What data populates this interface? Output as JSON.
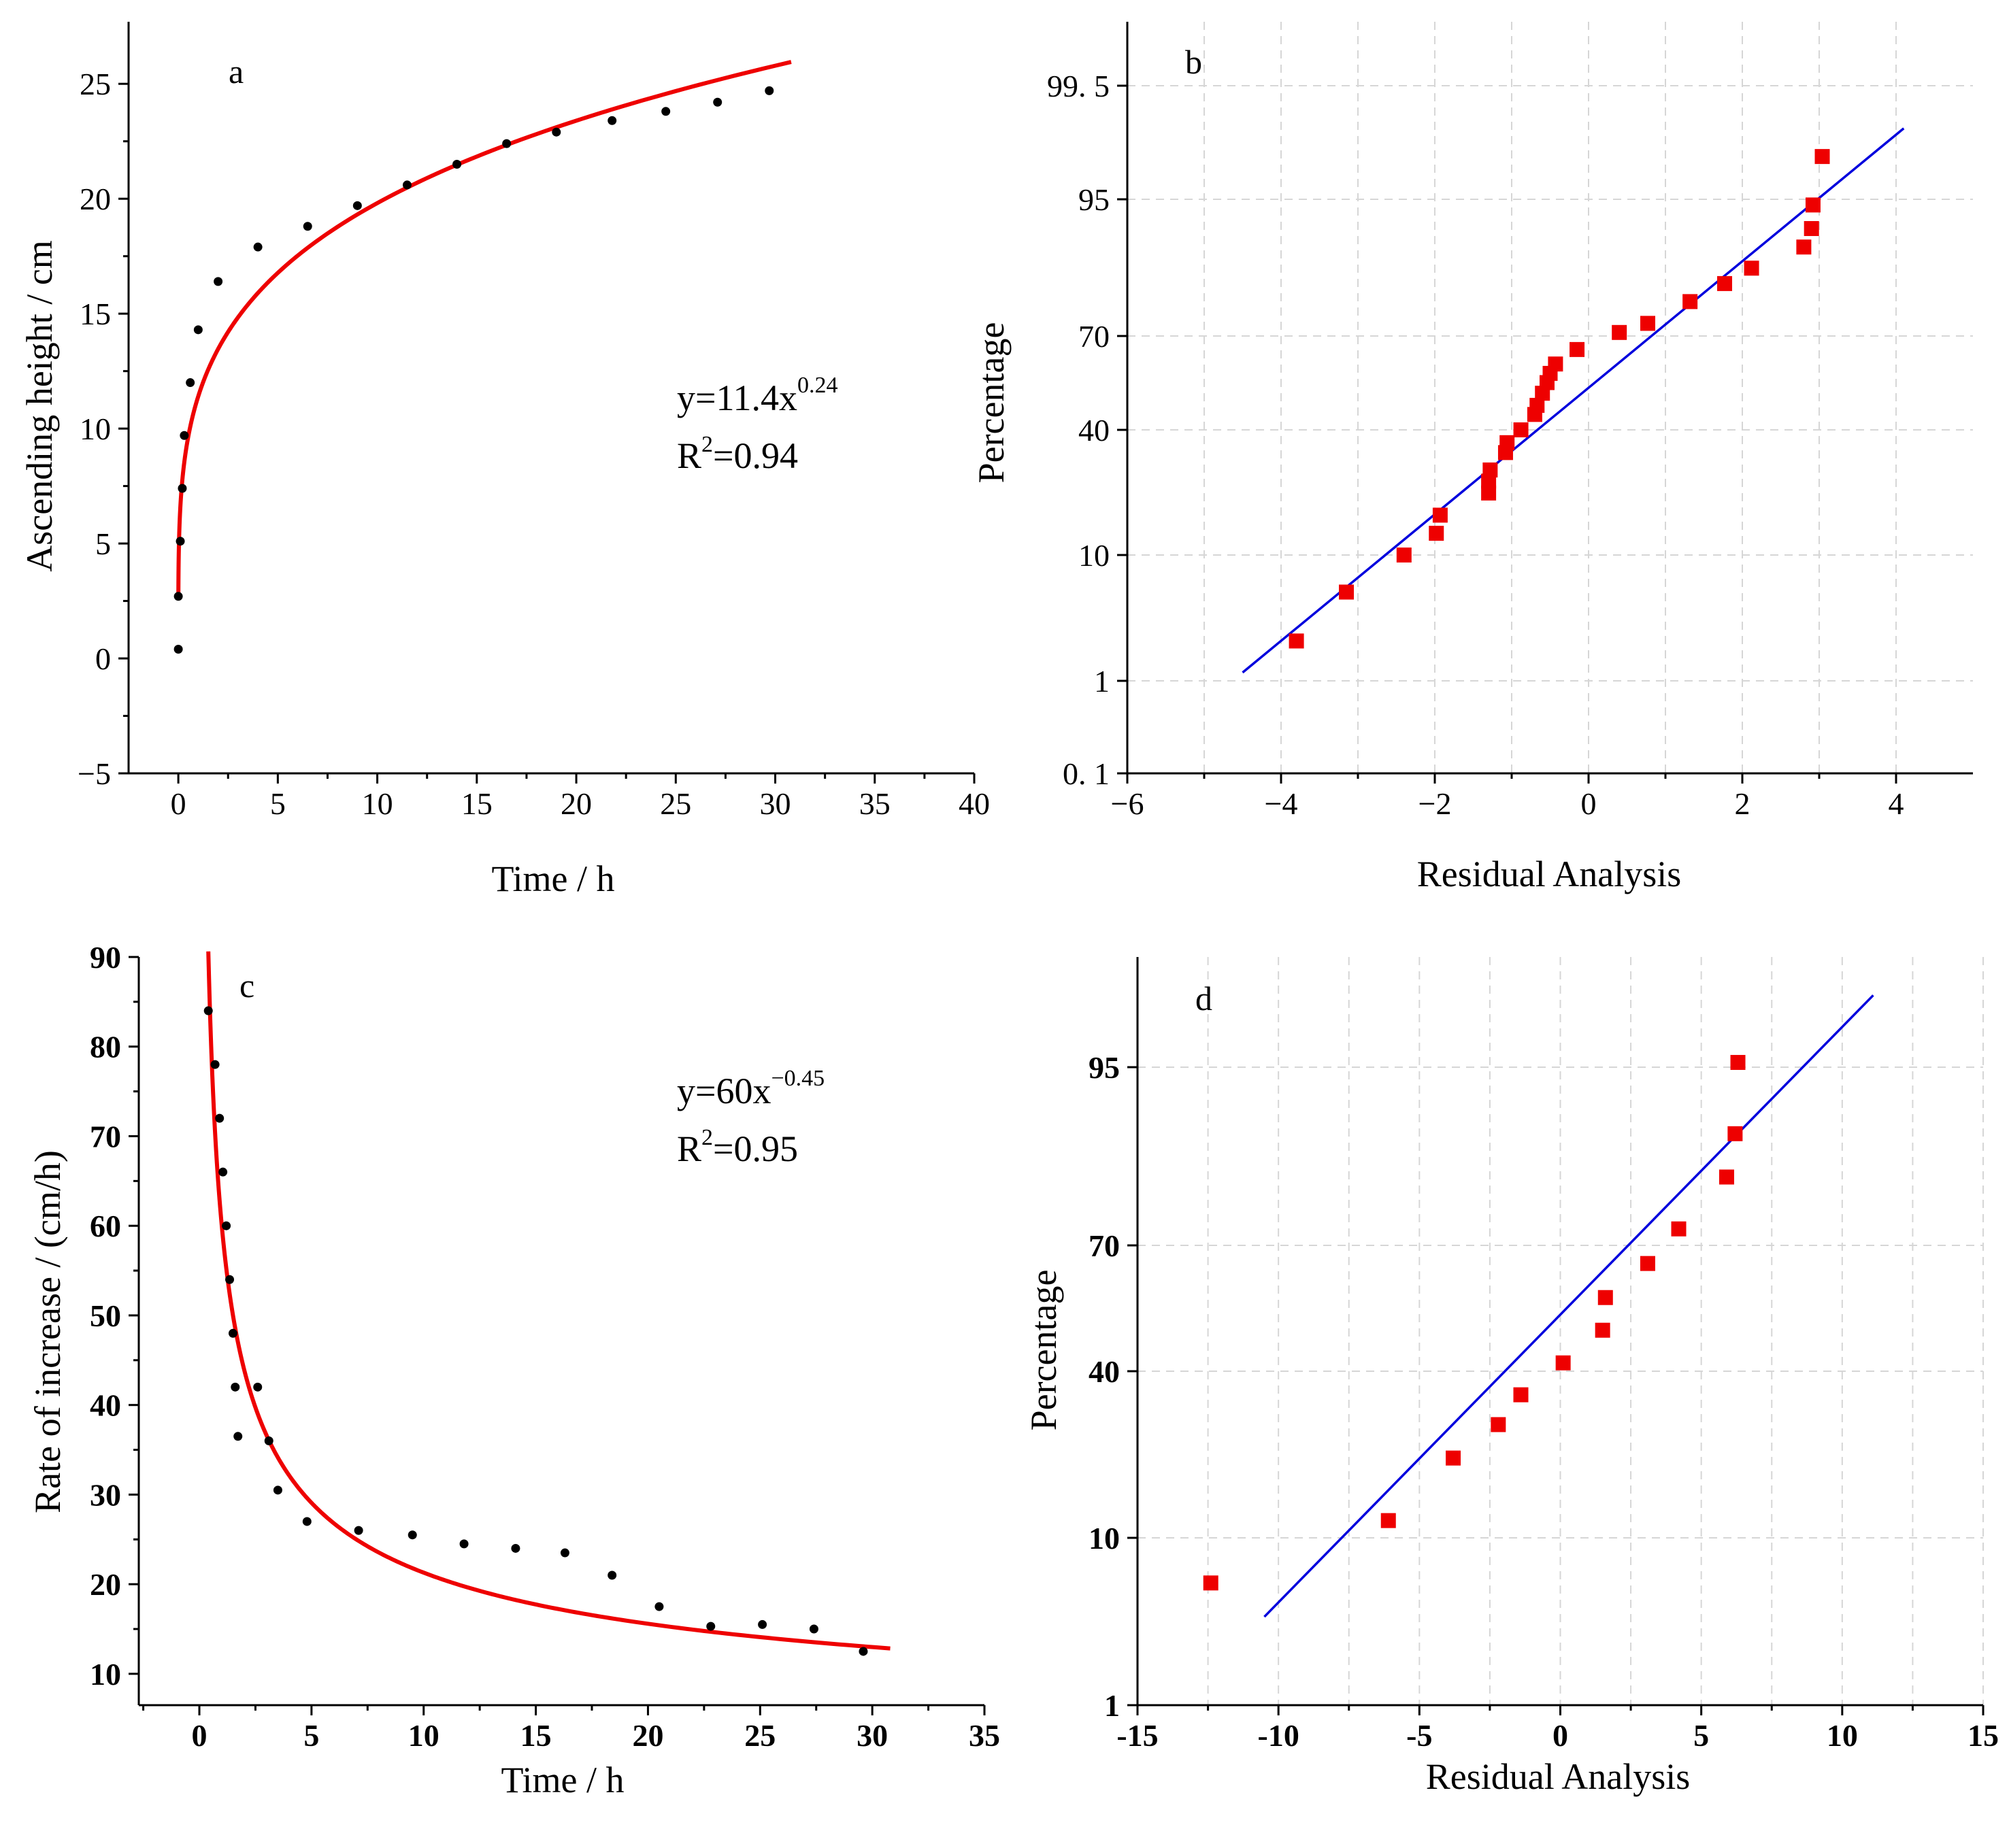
{
  "chart_data": [
    {
      "id": "a",
      "type": "scatter",
      "panel_label": "a",
      "xlabel": "Time / h",
      "ylabel": "Ascending height / cm",
      "xlim": [
        -2.5,
        40
      ],
      "ylim": [
        -5,
        27.7
      ],
      "xticks": [
        0,
        5,
        10,
        15,
        20,
        25,
        30,
        35,
        40
      ],
      "xtick_labels": [
        "0",
        "5",
        "10",
        "15",
        "20",
        "25",
        "30",
        "35",
        "40"
      ],
      "yticks": [
        -5,
        0,
        5,
        10,
        15,
        20,
        25
      ],
      "ytick_labels": [
        "−5",
        "0",
        "5",
        "10",
        "15",
        "20",
        "25"
      ],
      "grid": false,
      "series": [
        {
          "kind": "points",
          "color": "#000000",
          "x": [
            0.0,
            0.0,
            0.1,
            0.2,
            0.3,
            0.6,
            1.0,
            2.0,
            4.0,
            6.5,
            9.0,
            11.5,
            14.0,
            16.5,
            19.0,
            21.8,
            24.5,
            27.1,
            29.7
          ],
          "y": [
            0.4,
            2.7,
            5.1,
            7.4,
            9.7,
            12.0,
            14.3,
            16.4,
            17.9,
            18.8,
            19.7,
            20.6,
            21.5,
            22.4,
            22.9,
            23.4,
            23.8,
            24.2,
            24.7
          ]
        },
        {
          "kind": "fit",
          "color": "#ee0000",
          "equation": {
            "coef": 11.4,
            "exp": 0.24
          },
          "x_range": [
            0.0028,
            30.8
          ]
        }
      ],
      "annotations": {
        "equation_base": "y=11.4x",
        "equation_exp": "0.24",
        "r2_base": "R",
        "r2_sup": "2",
        "r2_value": "=0.94"
      }
    },
    {
      "id": "b",
      "type": "scatter",
      "panel_label": "b",
      "xlabel": "Residual Analysis",
      "ylabel": "Percentage",
      "y_scale": "normal-probability",
      "xlim": [
        -6,
        5
      ],
      "xticks": [
        -6,
        -4,
        -2,
        0,
        2,
        4
      ],
      "xtick_labels": [
        "−6",
        "−4",
        "−2",
        "0",
        "2",
        "4"
      ],
      "yticks": [
        0.1,
        1,
        10,
        40,
        70,
        95,
        99.5
      ],
      "ytick_labels": [
        "0. 1",
        "1",
        "10",
        "40",
        "70",
        "95",
        "99. 5"
      ],
      "grid": true,
      "series": [
        {
          "kind": "points",
          "color": "#ee0000",
          "x": [
            -3.8,
            -3.15,
            -2.4,
            -1.98,
            -1.93,
            -1.3,
            -1.3,
            -1.28,
            -1.08,
            -1.06,
            -0.88,
            -0.7,
            -0.67,
            -0.6,
            -0.54,
            -0.5,
            -0.43,
            -0.15,
            0.4,
            0.77,
            1.32,
            1.77,
            2.12,
            2.8,
            2.9,
            2.92,
            3.04
          ],
          "y": [
            2.3,
            5.6,
            10.0,
            13.5,
            17.0,
            22.0,
            25.0,
            28.0,
            33.0,
            36.0,
            40.0,
            45.0,
            48.0,
            52.0,
            55.5,
            58.5,
            61.5,
            66.0,
            71.0,
            73.5,
            79.0,
            83.0,
            86.0,
            89.5,
            92.0,
            94.5,
            97.7
          ]
        },
        {
          "kind": "fit",
          "color": "#0000dd",
          "x": [
            -4.5,
            4.1
          ],
          "y": [
            1.2,
            98.7
          ]
        }
      ]
    },
    {
      "id": "c",
      "type": "scatter",
      "panel_label": "c",
      "xlabel": "Time / h",
      "ylabel": "Rate of increase / (cm/h)",
      "xlim": [
        -2.7,
        35
      ],
      "ylim": [
        6.5,
        90
      ],
      "xticks": [
        0,
        5,
        10,
        15,
        20,
        25,
        30,
        35
      ],
      "xtick_labels": [
        "0",
        "5",
        "10",
        "15",
        "20",
        "25",
        "30",
        "35"
      ],
      "yticks": [
        10,
        20,
        30,
        40,
        50,
        60,
        70,
        80,
        90
      ],
      "ytick_labels": [
        "10",
        "20",
        "30",
        "40",
        "50",
        "60",
        "70",
        "80",
        "90"
      ],
      "ytick_bold": true,
      "grid": false,
      "series": [
        {
          "kind": "points",
          "color": "#000000",
          "x": [
            0.4,
            0.7,
            0.9,
            1.05,
            1.2,
            1.35,
            1.5,
            1.6,
            1.72,
            2.6,
            3.1,
            3.5,
            4.8,
            7.1,
            9.5,
            11.8,
            14.1,
            16.3,
            18.4,
            20.5,
            22.8,
            25.1,
            27.4,
            29.6
          ],
          "y": [
            84.0,
            78.0,
            72.0,
            66.0,
            60.0,
            54.0,
            48.0,
            42.0,
            36.5,
            42.0,
            36.0,
            30.5,
            27.0,
            26.0,
            25.5,
            24.5,
            24.0,
            23.5,
            21.0,
            17.5,
            15.3,
            15.5,
            15.0,
            12.5
          ]
        },
        {
          "kind": "fit",
          "color": "#ee0000",
          "equation": {
            "coef": 60,
            "exp": -0.45
          },
          "x_range": [
            0.4,
            30.8
          ]
        }
      ],
      "annotations": {
        "equation_base": "y=60x",
        "equation_exp": "−0.45",
        "r2_base": "R",
        "r2_sup": "2",
        "r2_value": "=0.95"
      }
    },
    {
      "id": "d",
      "type": "scatter",
      "panel_label": "d",
      "xlabel": "Residual Analysis",
      "ylabel": "Percentage",
      "y_scale": "normal-probability",
      "xlim": [
        -15,
        15
      ],
      "xticks": [
        -15,
        -10,
        -5,
        0,
        5,
        10,
        15
      ],
      "xtick_labels": [
        "-15",
        "-10",
        "-5",
        "0",
        "5",
        "10",
        "15"
      ],
      "yticks": [
        1,
        10,
        40,
        70,
        95
      ],
      "ytick_labels": [
        "1",
        "10",
        "40",
        "70",
        "95"
      ],
      "ytick_bold": true,
      "grid": true,
      "series": [
        {
          "kind": "points",
          "color": "#ee0000",
          "x": [
            -12.4,
            -6.1,
            -3.8,
            -2.2,
            -1.4,
            0.1,
            1.5,
            1.6,
            3.1,
            4.2,
            5.9,
            6.2,
            6.3
          ],
          "y": [
            5.9,
            12.0,
            21.5,
            28.0,
            34.5,
            42.0,
            50.0,
            58.0,
            66.0,
            73.5,
            83.0,
            89.0,
            95.3
          ]
        },
        {
          "kind": "fit",
          "color": "#0000dd",
          "x": [
            -10.5,
            11.1
          ],
          "y": [
            3.8,
            98.2
          ]
        }
      ]
    }
  ]
}
